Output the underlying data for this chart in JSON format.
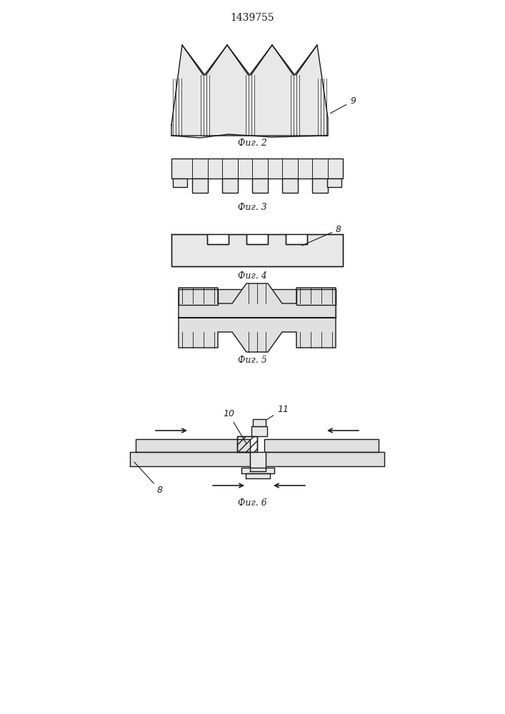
{
  "title": "1439755",
  "title_fontsize": 10,
  "fig2_label": "Фиг. 2",
  "fig3_label": "Фиг. 3",
  "fig4_label": "Фиг. 4",
  "fig5_label": "Фиг. 5",
  "fig6_label": "Фиг. 6",
  "label9": "9",
  "label8": "8",
  "label10": "10",
  "label11": "11",
  "bg_color": "#f0f0f0",
  "line_color": "#1a1a1a",
  "fill_color": "#d8d8d8",
  "hatch_color": "#555555"
}
